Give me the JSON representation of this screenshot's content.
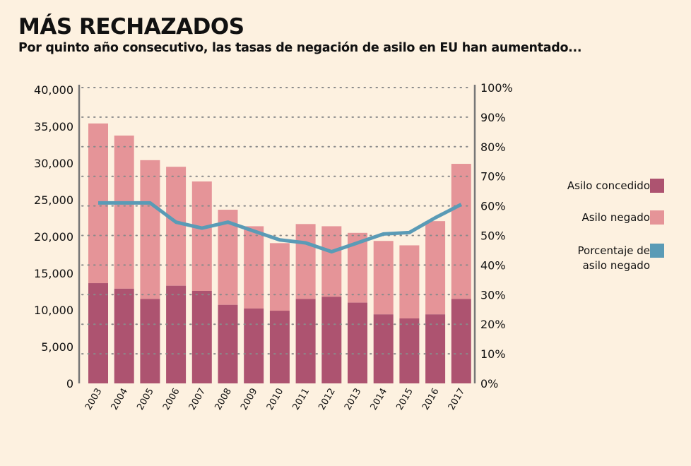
{
  "title": "MÁS RECHAZADOS",
  "subtitle": "Por quinto año consecutivo, las tasas de negación de asilo en EU han aumentado...",
  "colors": {
    "granted": "#ad5370",
    "denied": "#e59498",
    "line": "#5a9bb6",
    "axis": "#777777",
    "grid": "#8a8a8a"
  },
  "chart_data": {
    "type": "bar",
    "stacked": true,
    "categories": [
      "2003",
      "2004",
      "2005",
      "2006",
      "2007",
      "2008",
      "2009",
      "2010",
      "2011",
      "2012",
      "2013",
      "2014",
      "2015",
      "2016",
      "2017"
    ],
    "series": [
      {
        "name": "Asilo concedido",
        "axis": "left",
        "values": [
          13650,
          12900,
          11500,
          13300,
          12600,
          10700,
          10200,
          9900,
          11500,
          11800,
          11000,
          9400,
          8850,
          9400,
          11500
        ]
      },
      {
        "name": "Asilo negado",
        "axis": "left",
        "values": [
          21750,
          20850,
          18900,
          16200,
          14900,
          12950,
          11200,
          9200,
          10200,
          9600,
          9500,
          10000,
          9950,
          12700,
          18400
        ]
      },
      {
        "name": "Porcentaje de asilo negado",
        "type": "line",
        "axis": "right",
        "values": [
          61,
          61,
          61,
          54.5,
          52.5,
          54.5,
          51.5,
          48.5,
          47.5,
          44.5,
          47.5,
          50.5,
          51,
          56,
          60.5
        ]
      }
    ],
    "left_axis": {
      "ylim": [
        0,
        40000
      ],
      "ticks": [
        "0",
        "5,000",
        "10,000",
        "15,000",
        "20,000",
        "25,000",
        "30,000",
        "35,000",
        "40,000"
      ]
    },
    "right_axis": {
      "ylim": [
        0,
        100
      ],
      "ticks": [
        "0%",
        "10%",
        "20%",
        "30%",
        "40%",
        "50%",
        "60%",
        "70%",
        "80%",
        "90%",
        "100%"
      ]
    },
    "grid": "dotted horizontal at right-axis ticks",
    "legend": {
      "placement": "right",
      "entries": [
        "Asilo concedido",
        "Asilo negado",
        "Porcentaje de",
        "asilo negado"
      ]
    }
  }
}
